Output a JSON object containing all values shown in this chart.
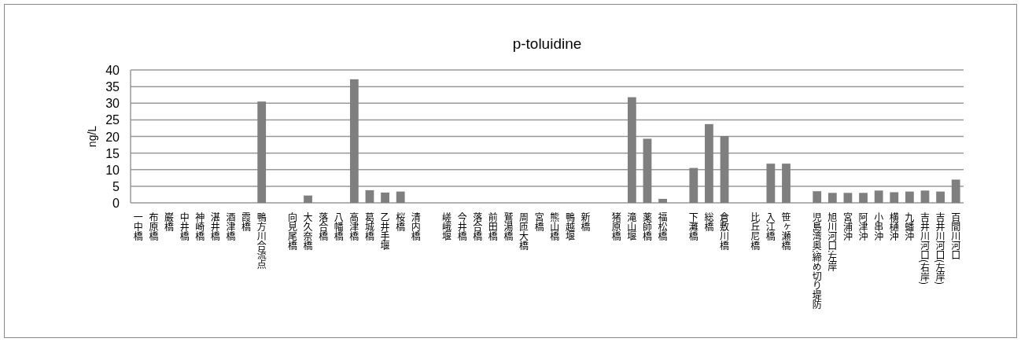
{
  "chart_data": {
    "type": "bar",
    "title": "p-toluidine",
    "ylabel": "ng/L",
    "categories": [
      "一中橋",
      "布原橋",
      "巌橋",
      "中井橋",
      "神崎橋",
      "湛井橋",
      "酒津橋",
      "霞橋",
      "鴨方川合流点",
      null,
      "向見尾橋",
      "大久奈橋",
      "落合橋",
      "八幡橋",
      "高津橋",
      "葛城橋",
      "乙井手堰",
      "桜橋",
      "清内橋",
      null,
      "嵯峨堰",
      "今井橋",
      "落合橋",
      "前田橋",
      "鷲湯橋",
      "周匝大橋",
      "宮橋",
      "熊山橋",
      "鴨越堰",
      "新橋",
      null,
      "猪原橋",
      "滝山堰",
      "薬師橋",
      "福松橋",
      null,
      "下灘橋",
      "総橋",
      "倉敷川橋",
      null,
      "比丘尼橋",
      "入江橋",
      "笹ヶ瀬橋",
      null,
      "児島湾奥:締め切り堤防",
      "旭川河口:左岸",
      "宮浦沖",
      "阿津沖",
      "小串沖",
      "横樋沖",
      "九蟠沖",
      "吉井川河口(右岸)",
      "吉井川河口(左岸)",
      "百間川河口"
    ],
    "values": [
      null,
      null,
      null,
      null,
      null,
      null,
      null,
      null,
      30.5,
      null,
      null,
      2.2,
      null,
      null,
      37.2,
      3.8,
      3.1,
      3.4,
      null,
      null,
      null,
      null,
      null,
      null,
      null,
      null,
      null,
      null,
      null,
      null,
      null,
      null,
      31.8,
      19.3,
      1.2,
      null,
      10.5,
      23.7,
      20.1,
      null,
      null,
      11.8,
      11.8,
      null,
      3.5,
      3.0,
      3.0,
      3.0,
      3.7,
      3.2,
      3.4,
      3.7,
      3.4,
      7.0
    ],
    "color": "#7f7f7f",
    "ylim": [
      0,
      40
    ],
    "yticks": [
      0,
      5,
      10,
      15,
      20,
      25,
      30,
      35,
      40
    ],
    "grid": "y"
  }
}
